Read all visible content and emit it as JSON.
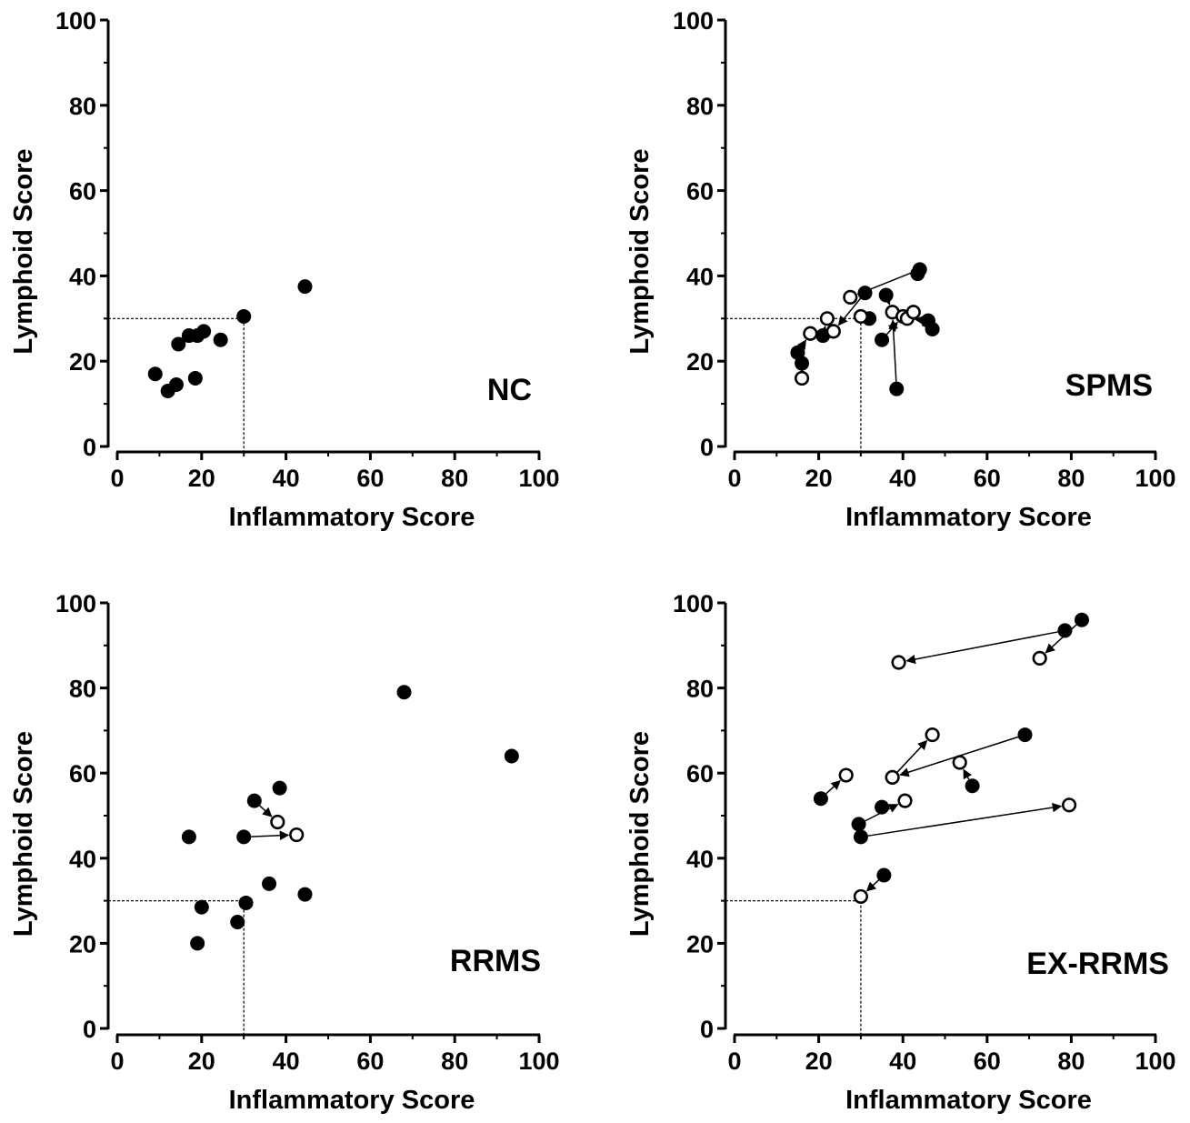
{
  "colors": {
    "ink": "#000000",
    "background": "#ffffff",
    "open_marker_fill": "#ffffff"
  },
  "chart_data": [
    {
      "type": "scatter",
      "panel_label": "NC",
      "xlabel": "Inflammatory Score",
      "ylabel": "Lymphoid Score",
      "xlim": [
        0,
        100
      ],
      "ylim": [
        0,
        100
      ],
      "xticks": [
        "0",
        "20",
        "40",
        "60",
        "80",
        "100"
      ],
      "yticks": [
        "0",
        "20",
        "40",
        "60",
        "80",
        "100"
      ],
      "threshold": {
        "x": 30,
        "y": 30,
        "style": "dashed"
      },
      "points": [
        {
          "x": 9,
          "y": 17,
          "filled": true
        },
        {
          "x": 12,
          "y": 13,
          "filled": true
        },
        {
          "x": 14,
          "y": 14.5,
          "filled": true
        },
        {
          "x": 14.5,
          "y": 24,
          "filled": true
        },
        {
          "x": 17,
          "y": 26,
          "filled": true
        },
        {
          "x": 18.5,
          "y": 16,
          "filled": true
        },
        {
          "x": 19,
          "y": 26,
          "filled": true
        },
        {
          "x": 20.5,
          "y": 27,
          "filled": true
        },
        {
          "x": 24.5,
          "y": 25,
          "filled": true
        },
        {
          "x": 30,
          "y": 30.5,
          "filled": true
        },
        {
          "x": 44.5,
          "y": 37.5,
          "filled": true
        }
      ],
      "arrows": []
    },
    {
      "type": "scatter",
      "panel_label": "SPMS",
      "xlabel": "Inflammatory Score",
      "ylabel": "Lymphoid Score",
      "xlim": [
        0,
        100
      ],
      "ylim": [
        0,
        100
      ],
      "xticks": [
        "0",
        "20",
        "40",
        "60",
        "80",
        "100"
      ],
      "yticks": [
        "0",
        "20",
        "40",
        "60",
        "80",
        "100"
      ],
      "threshold": {
        "x": 30,
        "y": 30,
        "style": "dashed"
      },
      "points": [
        {
          "x": 15,
          "y": 22,
          "filled": true
        },
        {
          "x": 16,
          "y": 19.5,
          "filled": true
        },
        {
          "x": 21,
          "y": 26,
          "filled": true
        },
        {
          "x": 31,
          "y": 36,
          "filled": true
        },
        {
          "x": 32,
          "y": 30,
          "filled": true
        },
        {
          "x": 35,
          "y": 25,
          "filled": true
        },
        {
          "x": 36,
          "y": 35.5,
          "filled": true
        },
        {
          "x": 38.5,
          "y": 13.5,
          "filled": true
        },
        {
          "x": 43.5,
          "y": 40.5,
          "filled": true
        },
        {
          "x": 44,
          "y": 41.5,
          "filled": true
        },
        {
          "x": 46,
          "y": 29.5,
          "filled": true
        },
        {
          "x": 47,
          "y": 27.5,
          "filled": true
        },
        {
          "x": 16,
          "y": 16,
          "filled": false
        },
        {
          "x": 18,
          "y": 26.5,
          "filled": false
        },
        {
          "x": 22,
          "y": 30,
          "filled": false
        },
        {
          "x": 23.5,
          "y": 27,
          "filled": false
        },
        {
          "x": 27.5,
          "y": 35,
          "filled": false
        },
        {
          "x": 30,
          "y": 30.5,
          "filled": false
        },
        {
          "x": 37.5,
          "y": 31.5,
          "filled": false
        },
        {
          "x": 40,
          "y": 30.5,
          "filled": false
        },
        {
          "x": 41,
          "y": 30,
          "filled": false
        },
        {
          "x": 42.5,
          "y": 31.5,
          "filled": false
        }
      ],
      "arrows": [
        {
          "from": [
            44,
            41.5
          ],
          "to": [
            27.5,
            35
          ]
        },
        {
          "from": [
            16,
            19.5
          ],
          "to": [
            16,
            16
          ]
        },
        {
          "from": [
            15,
            22
          ],
          "to": [
            18,
            26.5
          ]
        },
        {
          "from": [
            21,
            26
          ],
          "to": [
            22,
            30
          ]
        },
        {
          "from": [
            31,
            36
          ],
          "to": [
            23.5,
            27
          ]
        },
        {
          "from": [
            32,
            30
          ],
          "to": [
            30,
            30.5
          ]
        },
        {
          "from": [
            36,
            35.5
          ],
          "to": [
            37.5,
            31.5
          ]
        },
        {
          "from": [
            38.5,
            13.5
          ],
          "to": [
            37.5,
            31.5
          ]
        },
        {
          "from": [
            35,
            25
          ],
          "to": [
            40,
            30.5
          ]
        },
        {
          "from": [
            46,
            29.5
          ],
          "to": [
            41,
            30
          ]
        },
        {
          "from": [
            47,
            27.5
          ],
          "to": [
            42.5,
            31.5
          ]
        }
      ]
    },
    {
      "type": "scatter",
      "panel_label": "RRMS",
      "xlabel": "Inflammatory Score",
      "ylabel": "Lymphoid Score",
      "xlim": [
        0,
        100
      ],
      "ylim": [
        0,
        100
      ],
      "xticks": [
        "0",
        "20",
        "40",
        "60",
        "80",
        "100"
      ],
      "yticks": [
        "0",
        "20",
        "40",
        "60",
        "80",
        "100"
      ],
      "threshold": {
        "x": 30,
        "y": 30,
        "style": "dashed"
      },
      "points": [
        {
          "x": 17,
          "y": 45,
          "filled": true
        },
        {
          "x": 19,
          "y": 20,
          "filled": true
        },
        {
          "x": 20,
          "y": 28.5,
          "filled": true
        },
        {
          "x": 28.5,
          "y": 25,
          "filled": true
        },
        {
          "x": 30,
          "y": 45,
          "filled": true
        },
        {
          "x": 30.5,
          "y": 29.5,
          "filled": true
        },
        {
          "x": 32.5,
          "y": 53.5,
          "filled": true
        },
        {
          "x": 36,
          "y": 34,
          "filled": true
        },
        {
          "x": 38.5,
          "y": 56.5,
          "filled": true
        },
        {
          "x": 44.5,
          "y": 31.5,
          "filled": true
        },
        {
          "x": 68,
          "y": 79,
          "filled": true
        },
        {
          "x": 93.5,
          "y": 64,
          "filled": true
        },
        {
          "x": 38,
          "y": 48.5,
          "filled": false
        },
        {
          "x": 42.5,
          "y": 45.5,
          "filled": false
        }
      ],
      "arrows": [
        {
          "from": [
            32.5,
            53.5
          ],
          "to": [
            38,
            48.5
          ]
        },
        {
          "from": [
            30,
            45
          ],
          "to": [
            42.5,
            45.5
          ]
        }
      ]
    },
    {
      "type": "scatter",
      "panel_label": "EX-RRMS",
      "xlabel": "Inflammatory Score",
      "ylabel": "Lymphoid Score",
      "xlim": [
        0,
        100
      ],
      "ylim": [
        0,
        100
      ],
      "xticks": [
        "0",
        "20",
        "40",
        "60",
        "80",
        "100"
      ],
      "yticks": [
        "0",
        "20",
        "40",
        "60",
        "80",
        "100"
      ],
      "threshold": {
        "x": 30,
        "y": 30,
        "style": "dashed"
      },
      "points": [
        {
          "x": 20.5,
          "y": 54,
          "filled": true
        },
        {
          "x": 29.5,
          "y": 48,
          "filled": true
        },
        {
          "x": 30,
          "y": 45,
          "filled": true
        },
        {
          "x": 35,
          "y": 52,
          "filled": true
        },
        {
          "x": 35.5,
          "y": 36,
          "filled": true
        },
        {
          "x": 56.5,
          "y": 57,
          "filled": true
        },
        {
          "x": 69,
          "y": 69,
          "filled": true
        },
        {
          "x": 78.5,
          "y": 93.5,
          "filled": true
        },
        {
          "x": 82.5,
          "y": 96,
          "filled": true
        },
        {
          "x": 26.5,
          "y": 59.5,
          "filled": false
        },
        {
          "x": 30,
          "y": 31,
          "filled": false
        },
        {
          "x": 37.5,
          "y": 59,
          "filled": false
        },
        {
          "x": 39,
          "y": 86,
          "filled": false
        },
        {
          "x": 40.5,
          "y": 53.5,
          "filled": false
        },
        {
          "x": 47,
          "y": 69,
          "filled": false
        },
        {
          "x": 53.5,
          "y": 62.5,
          "filled": false
        },
        {
          "x": 72.5,
          "y": 87,
          "filled": false
        },
        {
          "x": 79.5,
          "y": 52.5,
          "filled": false
        }
      ],
      "arrows": [
        {
          "from": [
            78.5,
            93.5
          ],
          "to": [
            39,
            86
          ]
        },
        {
          "from": [
            82.5,
            96
          ],
          "to": [
            72.5,
            87
          ]
        },
        {
          "from": [
            20.5,
            54
          ],
          "to": [
            26.5,
            59.5
          ]
        },
        {
          "from": [
            69,
            69
          ],
          "to": [
            37.5,
            59
          ]
        },
        {
          "from": [
            37.5,
            59
          ],
          "to": [
            47,
            69
          ]
        },
        {
          "from": [
            56.5,
            57
          ],
          "to": [
            53.5,
            62.5
          ]
        },
        {
          "from": [
            29.5,
            48
          ],
          "to": [
            40.5,
            53.5
          ]
        },
        {
          "from": [
            30,
            45
          ],
          "to": [
            79.5,
            52.5
          ]
        },
        {
          "from": [
            35.5,
            36
          ],
          "to": [
            30,
            31
          ]
        }
      ]
    }
  ]
}
